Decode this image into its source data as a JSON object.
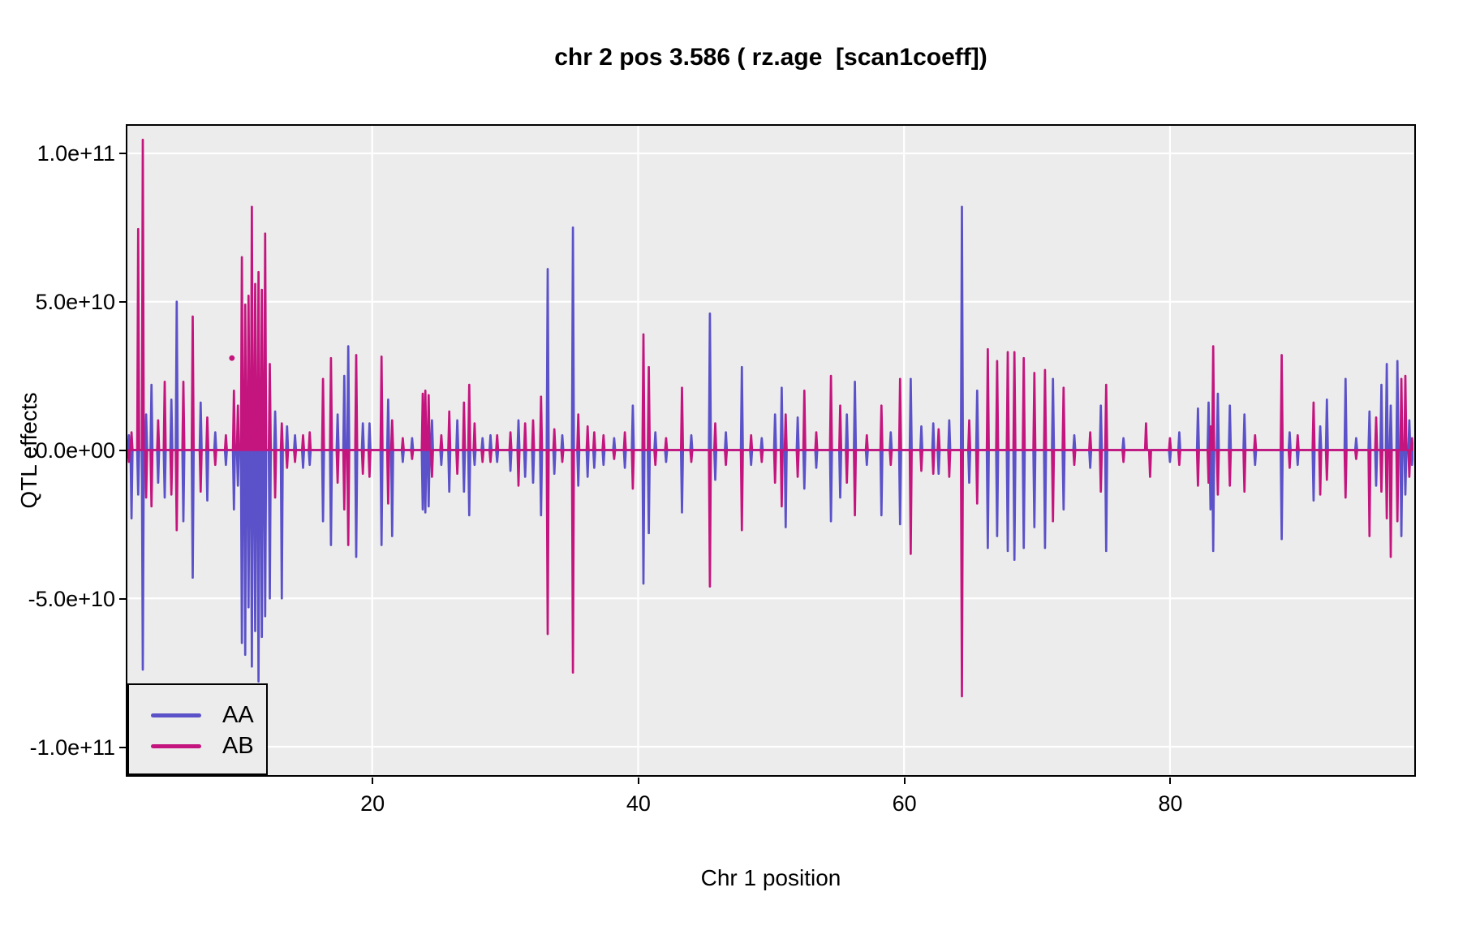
{
  "figure": {
    "title": "chr 2 pos 3.586 ( rz.age  [scan1coeff])"
  },
  "chart_data": {
    "type": "line",
    "title": "chr 2 pos 3.586 ( rz.age  [scan1coeff])",
    "xlabel": "Chr 1 position",
    "ylabel": "QTL effects",
    "value_unit": "1e10",
    "xlim": [
      1.59,
      98.31
    ],
    "ylim_e10": [
      -10.93,
      10.93
    ],
    "grid": "major-white-on-gray",
    "panel_bg": "#ECECEC",
    "grid_color": "#FFFFFF",
    "border_color": "#000000",
    "x_ticks": [
      20,
      40,
      60,
      80
    ],
    "x_tick_labels": [
      "20",
      "40",
      "60",
      "80"
    ],
    "y_ticks_e10": [
      10,
      5,
      0,
      -5,
      -10
    ],
    "y_tick_labels": [
      "1.0e+11",
      "5.0e+10",
      "0.0e+00",
      "-5.0e+10",
      "-1.0e+11"
    ],
    "legend_position": "bottom-left-inside",
    "series": [
      {
        "name": "AA",
        "color": "#5B51C8"
      },
      {
        "name": "AB",
        "color": "#C4157E"
      }
    ],
    "spikes_format": [
      "position",
      "AA_value_e10",
      "AB_value_e10"
    ],
    "spikes": [
      [
        1.7,
        0.5,
        -0.4
      ],
      [
        1.9,
        -2.3,
        0.6
      ],
      [
        2.4,
        -1.5,
        7.45
      ],
      [
        2.75,
        -7.4,
        10.46
      ],
      [
        3.0,
        1.2,
        -1.6
      ],
      [
        3.4,
        2.2,
        -1.9
      ],
      [
        3.9,
        -1.1,
        1.0
      ],
      [
        4.4,
        -1.6,
        2.3
      ],
      [
        4.9,
        1.7,
        -1.5
      ],
      [
        5.3,
        5.0,
        -2.7
      ],
      [
        5.8,
        -2.4,
        2.3
      ],
      [
        6.5,
        -4.3,
        4.5
      ],
      [
        7.1,
        1.6,
        -1.4
      ],
      [
        7.6,
        -1.7,
        1.1
      ],
      [
        8.2,
        0.6,
        -0.5
      ],
      [
        9.0,
        -0.5,
        0.5
      ],
      [
        9.6,
        -2.0,
        2.0
      ],
      [
        9.9,
        -1.2,
        1.5
      ],
      [
        10.2,
        -6.5,
        6.5
      ],
      [
        10.45,
        -6.9,
        4.9
      ],
      [
        10.7,
        -5.3,
        5.2
      ],
      [
        10.95,
        -7.3,
        8.2
      ],
      [
        11.2,
        -6.1,
        5.6
      ],
      [
        11.45,
        -7.8,
        6.0
      ],
      [
        11.7,
        -6.3,
        5.4
      ],
      [
        11.95,
        -5.6,
        7.3
      ],
      [
        12.3,
        -5.0,
        2.9
      ],
      [
        12.7,
        1.3,
        -1.6
      ],
      [
        13.2,
        -5.0,
        0.9
      ],
      [
        13.6,
        0.8,
        -0.6
      ],
      [
        14.2,
        0.5,
        -0.4
      ],
      [
        14.8,
        -0.6,
        0.5
      ],
      [
        15.3,
        -0.5,
        0.6
      ],
      [
        16.3,
        -2.4,
        2.4
      ],
      [
        16.9,
        -3.2,
        3.1
      ],
      [
        17.4,
        1.2,
        -1.1
      ],
      [
        17.9,
        2.5,
        -2.0
      ],
      [
        18.2,
        3.5,
        -3.2
      ],
      [
        18.8,
        -3.6,
        3.2
      ],
      [
        19.3,
        0.9,
        -0.8
      ],
      [
        19.8,
        0.9,
        -0.9
      ],
      [
        20.7,
        -3.2,
        3.15
      ],
      [
        21.2,
        1.7,
        -1.8
      ],
      [
        21.5,
        -2.9,
        1.0
      ],
      [
        22.3,
        -0.4,
        0.4
      ],
      [
        23.0,
        0.4,
        -0.3
      ],
      [
        23.8,
        -2.0,
        1.9
      ],
      [
        24.0,
        -2.1,
        2.0
      ],
      [
        24.25,
        -1.9,
        1.85
      ],
      [
        24.5,
        1.0,
        -0.9
      ],
      [
        25.2,
        -0.5,
        0.5
      ],
      [
        25.8,
        -1.4,
        1.3
      ],
      [
        26.4,
        1.0,
        -0.8
      ],
      [
        26.9,
        -1.4,
        1.6
      ],
      [
        27.3,
        -2.2,
        2.2
      ],
      [
        27.7,
        -0.5,
        0.9
      ],
      [
        28.3,
        0.4,
        -0.4
      ],
      [
        28.9,
        0.5,
        -0.4
      ],
      [
        29.4,
        -0.4,
        0.5
      ],
      [
        30.4,
        -0.7,
        0.6
      ],
      [
        31.0,
        1.0,
        -1.2
      ],
      [
        31.5,
        -0.9,
        0.9
      ],
      [
        32.1,
        -1.1,
        1.0
      ],
      [
        32.7,
        -2.2,
        1.8
      ],
      [
        33.2,
        6.1,
        -6.2
      ],
      [
        33.7,
        -0.8,
        0.7
      ],
      [
        34.3,
        0.5,
        -0.4
      ],
      [
        35.1,
        7.5,
        -7.5
      ],
      [
        35.5,
        -1.2,
        1.2
      ],
      [
        36.2,
        -0.9,
        0.8
      ],
      [
        36.7,
        -0.6,
        0.6
      ],
      [
        37.4,
        -0.5,
        0.5
      ],
      [
        38.2,
        0.4,
        -0.3
      ],
      [
        39.0,
        -0.6,
        0.6
      ],
      [
        39.6,
        1.5,
        -1.3
      ],
      [
        40.4,
        -4.5,
        3.9
      ],
      [
        40.8,
        -2.8,
        2.8
      ],
      [
        41.3,
        0.6,
        -0.5
      ],
      [
        42.1,
        -0.4,
        0.4
      ],
      [
        43.3,
        -2.1,
        2.1
      ],
      [
        44.0,
        0.5,
        -0.4
      ],
      [
        45.4,
        4.6,
        -4.6
      ],
      [
        45.8,
        -1.0,
        0.9
      ],
      [
        46.6,
        0.6,
        -0.5
      ],
      [
        47.8,
        2.8,
        -2.7
      ],
      [
        48.5,
        -0.5,
        0.5
      ],
      [
        49.3,
        0.4,
        -0.4
      ],
      [
        50.3,
        1.2,
        -1.1
      ],
      [
        50.8,
        2.1,
        -1.9
      ],
      [
        51.1,
        -2.6,
        1.2
      ],
      [
        52.0,
        1.1,
        -0.9
      ],
      [
        52.5,
        -1.3,
        2.0
      ],
      [
        53.4,
        -0.6,
        0.6
      ],
      [
        54.5,
        -2.4,
        2.5
      ],
      [
        55.2,
        -1.6,
        1.5
      ],
      [
        55.7,
        1.2,
        -1.1
      ],
      [
        56.3,
        2.3,
        -2.2
      ],
      [
        57.2,
        -0.5,
        0.5
      ],
      [
        58.3,
        -2.2,
        1.5
      ],
      [
        59.0,
        0.6,
        -0.5
      ],
      [
        59.7,
        -2.5,
        2.4
      ],
      [
        60.5,
        2.4,
        -3.5
      ],
      [
        61.3,
        0.8,
        -0.7
      ],
      [
        62.2,
        0.9,
        -0.8
      ],
      [
        62.6,
        -0.8,
        0.7
      ],
      [
        63.4,
        1.0,
        -0.9
      ],
      [
        64.35,
        8.2,
        -8.3
      ],
      [
        64.9,
        -1.1,
        1.0
      ],
      [
        65.5,
        2.0,
        -1.8
      ],
      [
        66.3,
        -3.3,
        3.4
      ],
      [
        67.0,
        -2.9,
        3.0
      ],
      [
        67.8,
        -3.4,
        3.3
      ],
      [
        68.3,
        -3.7,
        3.3
      ],
      [
        69.0,
        -3.3,
        3.1
      ],
      [
        69.8,
        -2.6,
        2.6
      ],
      [
        70.6,
        -3.3,
        2.7
      ],
      [
        71.2,
        2.4,
        -2.4
      ],
      [
        72.0,
        -2.0,
        2.1
      ],
      [
        72.8,
        0.5,
        -0.5
      ],
      [
        74.0,
        -0.6,
        0.6
      ],
      [
        74.8,
        1.5,
        -1.4
      ],
      [
        75.2,
        -3.4,
        2.2
      ],
      [
        76.5,
        0.4,
        -0.4
      ],
      [
        78.2,
        0,
        0.9
      ],
      [
        78.5,
        0,
        -0.9
      ],
      [
        80.0,
        -0.4,
        0.4
      ],
      [
        80.7,
        0.6,
        -0.5
      ],
      [
        82.1,
        1.4,
        -1.2
      ],
      [
        82.9,
        1.6,
        -1.1
      ],
      [
        83.05,
        -2.0,
        0.8
      ],
      [
        83.25,
        -3.4,
        3.5
      ],
      [
        83.6,
        1.9,
        -1.5
      ],
      [
        84.5,
        1.5,
        -1.2
      ],
      [
        85.6,
        1.2,
        -1.4
      ],
      [
        86.4,
        -0.5,
        0.5
      ],
      [
        88.4,
        -3.0,
        3.2
      ],
      [
        89.0,
        0.6,
        -0.6
      ],
      [
        89.6,
        -0.5,
        0.5
      ],
      [
        90.8,
        -1.7,
        1.6
      ],
      [
        91.3,
        0.8,
        -1.5
      ],
      [
        91.8,
        1.7,
        -1.0
      ],
      [
        93.2,
        2.4,
        -1.6
      ],
      [
        94.0,
        0.4,
        -0.3
      ],
      [
        95.0,
        1.3,
        -2.9
      ],
      [
        95.5,
        -1.2,
        1.1
      ],
      [
        95.9,
        2.2,
        -1.4
      ],
      [
        96.3,
        2.9,
        -2.3
      ],
      [
        96.6,
        1.5,
        -3.6
      ],
      [
        97.1,
        3.0,
        -2.4
      ],
      [
        97.4,
        -2.9,
        2.4
      ],
      [
        97.7,
        -1.5,
        2.5
      ],
      [
        98.0,
        1.0,
        -0.9
      ],
      [
        98.2,
        -0.5,
        0.4
      ]
    ],
    "points": [
      {
        "series": "AB",
        "pos": 9.45,
        "value_e10": 3.1
      }
    ]
  }
}
